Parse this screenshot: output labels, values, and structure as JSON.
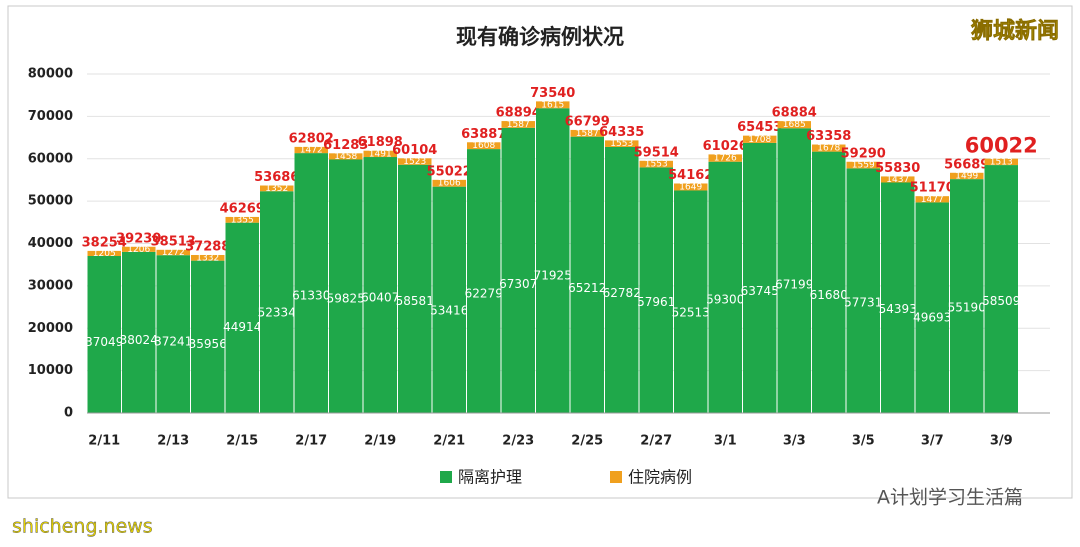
{
  "chart_data": {
    "type": "stacked_bar",
    "title": "现有确诊病例状况",
    "watermark": "狮城新闻",
    "footer": "A计划学习生活篇",
    "source": "shicheng.news",
    "categories": [
      "2/11",
      null,
      "2/13",
      null,
      "2/15",
      null,
      "2/17",
      null,
      "2/19",
      null,
      "2/21",
      null,
      "2/23",
      null,
      "2/25",
      null,
      "2/27",
      null,
      "3/1",
      null,
      "3/3",
      null,
      "3/5",
      null,
      "3/7",
      null,
      "3/9"
    ],
    "series": [
      {
        "name": "隔离护理",
        "color": "#1fa84a",
        "values": [
          37049,
          38024,
          37241,
          35956,
          44914,
          52334,
          61330,
          59825,
          60407,
          58581,
          53416,
          62279,
          67307,
          71925,
          65212,
          62782,
          57961,
          52513,
          59300,
          63745,
          67199,
          61680,
          57731,
          54393,
          49693,
          55190,
          58509
        ]
      },
      {
        "name": "住院病例",
        "color": "#f0a01e",
        "values": [
          1205,
          1206,
          1272,
          1332,
          1355,
          1352,
          1472,
          1458,
          1491,
          1523,
          1606,
          1608,
          1587,
          1615,
          1587,
          1553,
          1553,
          1649,
          1726,
          1708,
          1685,
          1678,
          1559,
          1437,
          1477,
          1499,
          1513
        ]
      }
    ],
    "totals": [
      38254,
      39230,
      38513,
      37288,
      46269,
      53686,
      62802,
      61283,
      61898,
      60104,
      55022,
      63887,
      68894,
      73540,
      66799,
      64335,
      59514,
      54162,
      61026,
      65453,
      68884,
      63358,
      59290,
      55830,
      51170,
      56689,
      60022
    ],
    "ylim": [
      0,
      80000
    ],
    "yticks": [
      0,
      10000,
      20000,
      30000,
      40000,
      50000,
      60000,
      70000,
      80000
    ],
    "grid": true
  }
}
